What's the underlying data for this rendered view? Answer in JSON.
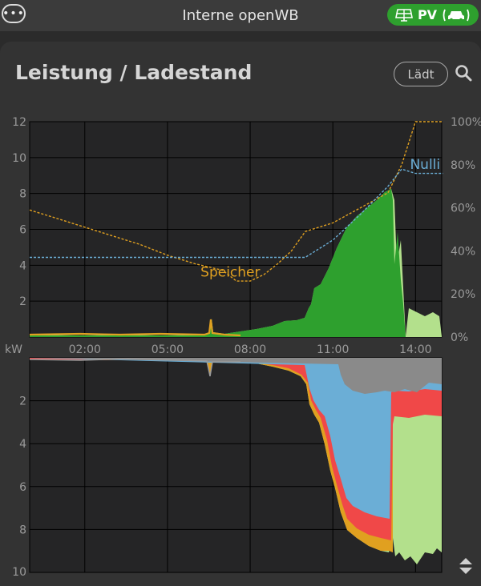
{
  "header": {
    "menu_label": "•••",
    "title": "Interne openWB",
    "pv_badge": "PV"
  },
  "card": {
    "title": "Leistung / Ladestand",
    "status_button": "Lädt"
  },
  "icons": {
    "search": "search-icon",
    "solar": "solar-panel-icon",
    "car": "car-icon",
    "scroll": "scroll-updown-icon"
  },
  "colors": {
    "green": "#2ea02e",
    "lightgreen": "#b3e08c",
    "blue": "#6baed6",
    "red": "#f04848",
    "orange": "#e0a020",
    "gray": "#888888"
  },
  "chart_data": [
    {
      "type": "area",
      "x_ticks": [
        "02:00",
        "05:00",
        "08:00",
        "11:00",
        "14:00"
      ],
      "y_ticks": [
        2,
        4,
        6,
        8,
        10,
        12
      ],
      "ylim": [
        0,
        12
      ],
      "ylabel": "kW",
      "y2_ticks": [
        "0%",
        "20%",
        "40%",
        "60%",
        "80%",
        "100%"
      ],
      "y2lim": [
        0,
        100
      ],
      "series": [
        {
          "name": "Speicher",
          "style": "dashed",
          "axis": "right",
          "color": "#e0a020",
          "x": [
            "00:00",
            "01:00",
            "02:00",
            "03:00",
            "04:00",
            "05:00",
            "06:00",
            "07:00",
            "07:30",
            "08:00",
            "08:30",
            "09:00",
            "09:30",
            "10:00",
            "11:00",
            "12:00",
            "13:00",
            "13:30",
            "14:00",
            "15:00"
          ],
          "values": [
            59,
            55,
            51,
            47,
            43,
            38,
            34,
            31,
            26,
            26,
            29,
            34,
            40,
            49,
            53,
            60,
            67,
            80,
            100,
            100
          ]
        },
        {
          "name": "Nulli",
          "style": "dashed",
          "axis": "right",
          "color": "#6baed6",
          "x": [
            "00:00",
            "01:00",
            "02:00",
            "03:00",
            "04:00",
            "05:00",
            "06:00",
            "07:00",
            "08:00",
            "09:00",
            "10:00",
            "11:00",
            "12:00",
            "13:00",
            "13:30",
            "14:00",
            "15:00"
          ],
          "values": [
            37,
            37,
            37,
            37,
            37,
            37,
            37,
            37,
            37,
            37,
            37,
            45,
            57,
            70,
            78,
            76,
            76
          ]
        }
      ]
    },
    {
      "type": "area",
      "y_ticks": [
        2,
        4,
        6,
        8,
        10
      ],
      "ylim": [
        10,
        0
      ]
    }
  ]
}
